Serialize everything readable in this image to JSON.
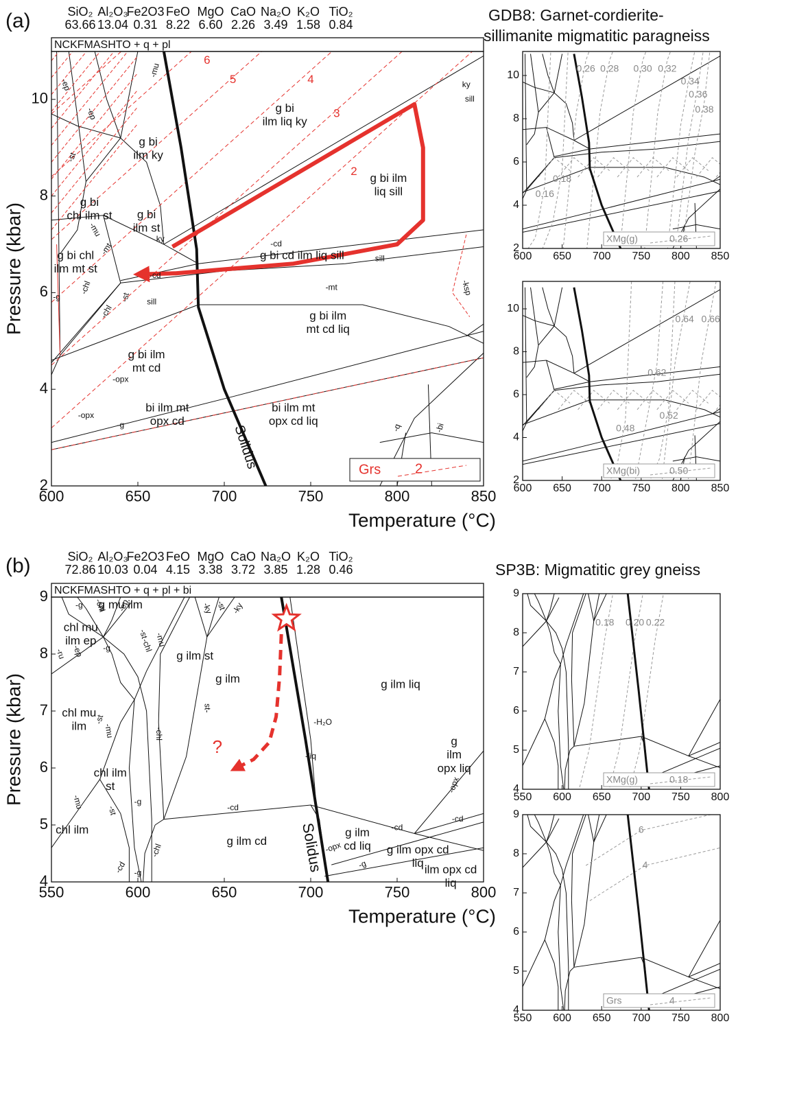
{
  "panels": [
    {
      "tag": "(a)",
      "oxides": [
        "SiO₂",
        "Al₂O₃",
        "Fe2O3",
        "FeO",
        "MgO",
        "CaO",
        "Na₂O",
        "K₂O",
        "TiO₂"
      ],
      "composition": [
        "63.66",
        "13.04",
        "0.31",
        "8.22",
        "6.60",
        "2.26",
        "3.49",
        "1.58",
        "0.84"
      ],
      "system": "NCKFMASHTO + q + pl",
      "sample": [
        "GDB8: Garnet-cordierite-",
        "sillimanite migmatitic paragneiss"
      ],
      "x_label": "Temperature (°C)",
      "y_label": "Pressure (kbar)",
      "x_ticks": [
        600,
        650,
        700,
        750,
        800,
        850
      ],
      "y_ticks": [
        2,
        4,
        6,
        8,
        10
      ],
      "fields": [
        [
          "g bi",
          "ilm liq ky"
        ],
        [
          "g bi",
          "ilm ky"
        ],
        [
          "g bi ilm",
          "liq sill"
        ],
        [
          "g bi",
          "chl ilm st"
        ],
        [
          "g bi",
          "ilm st"
        ],
        [
          "g bi chl",
          "ilm mt st"
        ],
        [
          "g bi cd ilm liq sill"
        ],
        [
          "g bi ilm",
          "mt cd liq"
        ],
        [
          "g bi ilm",
          "mt cd"
        ],
        [
          "bi ilm mt",
          "opx cd"
        ],
        [
          "bi ilm mt",
          "opx cd liq"
        ]
      ],
      "line_labels": [
        "-ep",
        "-mu",
        "-st",
        "ky",
        "-cd",
        "sill",
        "-mt",
        "-g",
        "-chl",
        "-opx",
        "-ksp",
        "-q",
        "-bi",
        "-g",
        "-opx",
        "-cd",
        "-st",
        "sill",
        "-mt",
        "ky",
        "sill",
        "-ep",
        "-mu",
        "-chl"
      ],
      "isopleth_labels": [
        "2",
        "3",
        "4",
        "5",
        "6"
      ],
      "solidus": "Solidus",
      "legend": {
        "name": "Grs",
        "value": "2"
      },
      "insets": [
        {
          "x_ticks": [
            600,
            650,
            700,
            750,
            800,
            850
          ],
          "y_ticks": [
            2,
            4,
            6,
            8,
            10
          ],
          "isopleth_labels": [
            "0.26",
            "0.28",
            "0.30",
            "0.32",
            "0.34",
            "0.36",
            "0.38",
            "0.18",
            "0.16"
          ],
          "legend": {
            "name": "XMg(g)",
            "value": "0.26"
          }
        },
        {
          "x_ticks": [
            600,
            650,
            700,
            750,
            800,
            850
          ],
          "y_ticks": [
            2,
            4,
            6,
            8,
            10
          ],
          "isopleth_labels": [
            "0.64",
            "0.66",
            "0.62",
            "0.52",
            "0.48"
          ],
          "legend": {
            "name": "XMg(bi)",
            "value": "0.50"
          }
        }
      ]
    },
    {
      "tag": "(b)",
      "oxides": [
        "SiO₂",
        "Al₂O₃",
        "Fe2O3",
        "FeO",
        "MgO",
        "CaO",
        "Na₂O",
        "K₂O",
        "TiO₂"
      ],
      "composition": [
        "72.86",
        "10.03",
        "0.04",
        "4.15",
        "3.38",
        "3.72",
        "3.85",
        "1.28",
        "0.46"
      ],
      "system": "NCKFMASHTO + q + pl + bi",
      "sample": [
        "SP3B: Migmatitic grey gneiss"
      ],
      "x_label": "Temperature (°C)",
      "y_label": "Pressure (kbar)",
      "x_ticks": [
        550,
        600,
        650,
        700,
        750,
        800
      ],
      "y_ticks": [
        4,
        5,
        6,
        7,
        8,
        9
      ],
      "fields": [
        [
          "g  mu ilm"
        ],
        [
          "chl mu",
          "ilm ep"
        ],
        [
          "g ilm st"
        ],
        [
          "g ilm"
        ],
        [
          "g ilm liq"
        ],
        [
          "chl mu",
          "ilm"
        ],
        [
          "chl ilm",
          "st"
        ],
        [
          "chl ilm"
        ],
        [
          "g ilm cd"
        ],
        [
          "g ilm",
          "cd liq"
        ],
        [
          "g ilm opx cd",
          "liq"
        ],
        [
          "ilm opx cd",
          "liq"
        ],
        [
          "g",
          "ilm",
          "opx liq"
        ]
      ],
      "line_labels": [
        "-g",
        "-chl",
        "-ep",
        "-ru",
        "-ep",
        "-g",
        "-chl",
        "-st",
        "-mu",
        "-ky",
        "-st",
        "-ky",
        "st-",
        "-chl",
        "-st",
        "-mu",
        "-H₂O",
        "-liq",
        "-cd",
        "-cd",
        "-cd",
        "-opx",
        "-opx",
        "-g",
        "-mu",
        "-st",
        "-g",
        "-cd",
        "-g",
        "-chl"
      ],
      "path_label": "?",
      "solidus": "Solidus",
      "insets": [
        {
          "x_ticks": [
            550,
            600,
            650,
            700,
            750,
            800
          ],
          "y_ticks": [
            4,
            5,
            6,
            7,
            8,
            9
          ],
          "isopleth_labels": [
            "0.18",
            "0.20",
            "0.22"
          ],
          "legend": {
            "name": "XMg(g)",
            "value": "0.18"
          }
        },
        {
          "x_ticks": [
            550,
            600,
            650,
            700,
            750,
            800
          ],
          "y_ticks": [
            4,
            5,
            6,
            7,
            8,
            9
          ],
          "isopleth_labels": [
            "6",
            "4"
          ],
          "legend": {
            "name": "Grs",
            "value": "4"
          }
        }
      ]
    }
  ]
}
